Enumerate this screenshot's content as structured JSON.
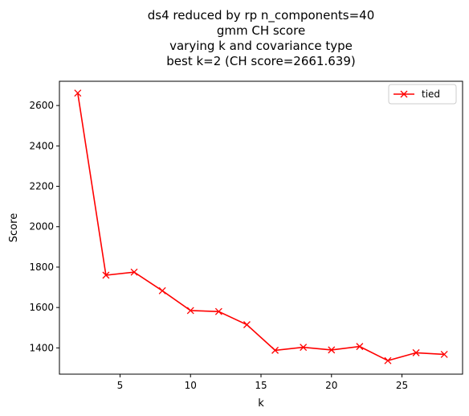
{
  "chart_data": {
    "type": "line",
    "title_lines": [
      "ds4 reduced by rp n_components=40",
      "gmm CH score",
      "varying k and covariance type",
      "best k=2 (CH score=2661.639)"
    ],
    "xlabel": "k",
    "ylabel": "Score",
    "xlim": [
      0.7,
      29.3
    ],
    "ylim": [
      1270,
      2720
    ],
    "xticks": [
      5,
      10,
      15,
      20,
      25
    ],
    "yticks": [
      1400,
      1600,
      1800,
      2000,
      2200,
      2400,
      2600
    ],
    "grid": false,
    "legend_position": "top-right",
    "series": [
      {
        "name": "tied",
        "color": "#ff0000",
        "marker": "x",
        "x": [
          2,
          4,
          6,
          8,
          10,
          12,
          14,
          16,
          18,
          20,
          22,
          24,
          26,
          28
        ],
        "y": [
          2661.639,
          1760,
          1775,
          1683,
          1585,
          1580,
          1515,
          1388,
          1403,
          1390,
          1407,
          1337,
          1376,
          1368
        ]
      }
    ]
  }
}
